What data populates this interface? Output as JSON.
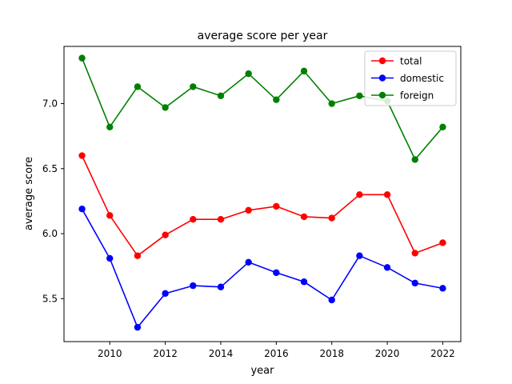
{
  "chart_data": {
    "type": "line",
    "title": "average score per year",
    "xlabel": "year",
    "ylabel": "average score",
    "xlim": [
      2008.35,
      2022.65
    ],
    "ylim": [
      5.17,
      7.44
    ],
    "xticks": [
      2010,
      2012,
      2014,
      2016,
      2018,
      2020,
      2022
    ],
    "yticks": [
      5.5,
      6.0,
      6.5,
      7.0
    ],
    "ytick_labels": [
      "5.5",
      "6.0",
      "6.5",
      "7.0"
    ],
    "legend_position": "top-right",
    "grid": false,
    "x": [
      2009,
      2010,
      2011,
      2012,
      2013,
      2014,
      2015,
      2016,
      2017,
      2018,
      2019,
      2020,
      2021,
      2022
    ],
    "series": [
      {
        "name": "total",
        "color": "#ff0000",
        "values": [
          6.6,
          6.14,
          5.83,
          5.99,
          6.11,
          6.11,
          6.18,
          6.21,
          6.13,
          6.12,
          6.3,
          6.3,
          5.85,
          5.93
        ]
      },
      {
        "name": "domestic",
        "color": "#0000ff",
        "values": [
          6.19,
          5.81,
          5.28,
          5.54,
          5.6,
          5.59,
          5.78,
          5.7,
          5.63,
          5.49,
          5.83,
          5.74,
          5.62,
          5.58
        ]
      },
      {
        "name": "foreign",
        "color": "#008000",
        "values": [
          7.35,
          6.82,
          7.13,
          6.97,
          7.13,
          7.06,
          7.23,
          7.03,
          7.25,
          7.0,
          7.06,
          7.02,
          6.57,
          6.82
        ]
      }
    ]
  }
}
